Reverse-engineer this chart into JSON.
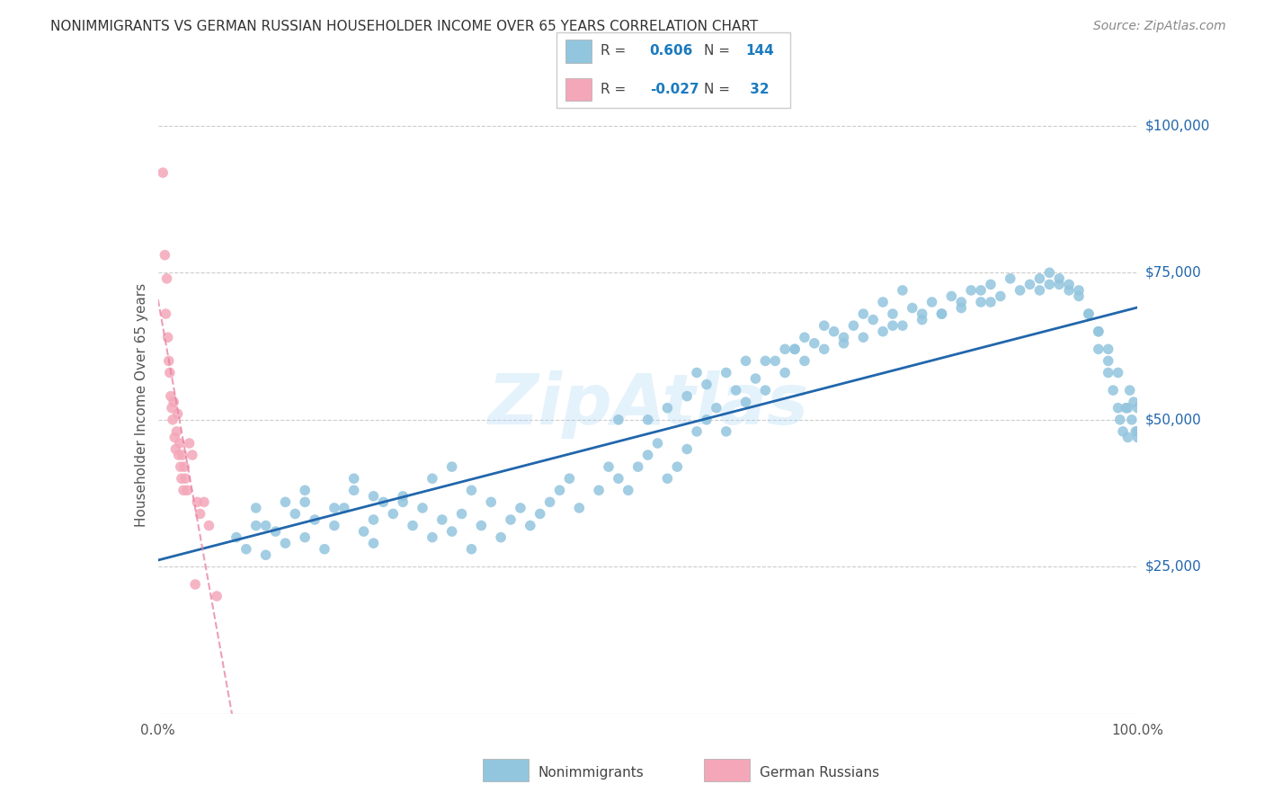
{
  "title": "NONIMMIGRANTS VS GERMAN RUSSIAN HOUSEHOLDER INCOME OVER 65 YEARS CORRELATION CHART",
  "source": "Source: ZipAtlas.com",
  "ylabel": "Householder Income Over 65 years",
  "xlim": [
    0,
    1.0
  ],
  "ylim": [
    0,
    105000
  ],
  "yticks": [
    25000,
    50000,
    75000,
    100000
  ],
  "ytick_labels": [
    "$25,000",
    "$50,000",
    "$75,000",
    "$100,000"
  ],
  "xtick_labels": [
    "0.0%",
    "100.0%"
  ],
  "blue_color": "#92c5de",
  "pink_color": "#f4a7b9",
  "blue_line_color": "#2166ac",
  "pink_line_color": "#e87ea1",
  "watermark": "ZipAtlas",
  "ni_x": [
    0.08,
    0.09,
    0.1,
    0.1,
    0.11,
    0.12,
    0.13,
    0.14,
    0.15,
    0.15,
    0.16,
    0.17,
    0.18,
    0.19,
    0.2,
    0.21,
    0.22,
    0.22,
    0.23,
    0.24,
    0.25,
    0.26,
    0.27,
    0.28,
    0.29,
    0.3,
    0.31,
    0.32,
    0.33,
    0.34,
    0.35,
    0.36,
    0.37,
    0.38,
    0.39,
    0.4,
    0.41,
    0.42,
    0.43,
    0.45,
    0.46,
    0.47,
    0.48,
    0.49,
    0.5,
    0.51,
    0.52,
    0.53,
    0.54,
    0.55,
    0.56,
    0.57,
    0.58,
    0.59,
    0.6,
    0.61,
    0.62,
    0.63,
    0.64,
    0.65,
    0.66,
    0.67,
    0.68,
    0.69,
    0.7,
    0.71,
    0.72,
    0.73,
    0.74,
    0.75,
    0.76,
    0.77,
    0.78,
    0.79,
    0.8,
    0.81,
    0.82,
    0.83,
    0.84,
    0.85,
    0.86,
    0.87,
    0.88,
    0.89,
    0.9,
    0.91,
    0.92,
    0.93,
    0.94,
    0.95,
    0.96,
    0.96,
    0.97,
    0.97,
    0.975,
    0.98,
    0.982,
    0.985,
    0.988,
    0.99,
    0.992,
    0.994,
    0.996,
    0.998,
    1.0,
    1.0,
    0.47,
    0.15,
    0.13,
    0.11,
    0.2,
    0.22,
    0.18,
    0.3,
    0.28,
    0.32,
    0.25,
    0.55,
    0.6,
    0.65,
    0.7,
    0.75,
    0.8,
    0.85,
    0.9,
    0.91,
    0.92,
    0.93,
    0.94,
    0.95,
    0.96,
    0.97,
    0.98,
    0.99,
    1.0,
    0.5,
    0.52,
    0.54,
    0.56,
    0.58,
    0.62,
    0.64,
    0.66,
    0.68,
    0.72,
    0.74,
    0.76,
    0.78,
    0.82,
    0.84
  ],
  "ni_y": [
    30000,
    28000,
    35000,
    32000,
    27000,
    31000,
    29000,
    34000,
    36000,
    30000,
    33000,
    28000,
    32000,
    35000,
    38000,
    31000,
    29000,
    33000,
    36000,
    34000,
    37000,
    32000,
    35000,
    30000,
    33000,
    31000,
    34000,
    28000,
    32000,
    36000,
    30000,
    33000,
    35000,
    32000,
    34000,
    36000,
    38000,
    40000,
    35000,
    38000,
    42000,
    40000,
    38000,
    42000,
    44000,
    46000,
    40000,
    42000,
    45000,
    48000,
    50000,
    52000,
    48000,
    55000,
    53000,
    57000,
    55000,
    60000,
    58000,
    62000,
    60000,
    63000,
    62000,
    65000,
    63000,
    66000,
    64000,
    67000,
    65000,
    68000,
    66000,
    69000,
    67000,
    70000,
    68000,
    71000,
    69000,
    72000,
    70000,
    73000,
    71000,
    74000,
    72000,
    73000,
    74000,
    75000,
    73000,
    72000,
    71000,
    68000,
    65000,
    62000,
    60000,
    58000,
    55000,
    52000,
    50000,
    48000,
    52000,
    47000,
    55000,
    50000,
    53000,
    48000,
    47000,
    52000,
    50000,
    38000,
    36000,
    32000,
    40000,
    37000,
    35000,
    42000,
    40000,
    38000,
    36000,
    58000,
    60000,
    62000,
    64000,
    66000,
    68000,
    70000,
    72000,
    73000,
    74000,
    73000,
    72000,
    68000,
    65000,
    62000,
    58000,
    52000,
    48000,
    50000,
    52000,
    54000,
    56000,
    58000,
    60000,
    62000,
    64000,
    66000,
    68000,
    70000,
    72000,
    68000,
    70000,
    72000
  ],
  "gr_x": [
    0.005,
    0.007,
    0.008,
    0.009,
    0.01,
    0.011,
    0.012,
    0.013,
    0.014,
    0.015,
    0.016,
    0.017,
    0.018,
    0.019,
    0.02,
    0.021,
    0.022,
    0.023,
    0.024,
    0.025,
    0.026,
    0.027,
    0.028,
    0.03,
    0.032,
    0.035,
    0.038,
    0.04,
    0.043,
    0.047,
    0.052,
    0.06
  ],
  "gr_y": [
    92000,
    78000,
    68000,
    74000,
    64000,
    60000,
    58000,
    54000,
    52000,
    50000,
    53000,
    47000,
    45000,
    48000,
    51000,
    44000,
    46000,
    42000,
    40000,
    44000,
    38000,
    42000,
    40000,
    38000,
    46000,
    44000,
    22000,
    36000,
    34000,
    36000,
    32000,
    20000
  ]
}
